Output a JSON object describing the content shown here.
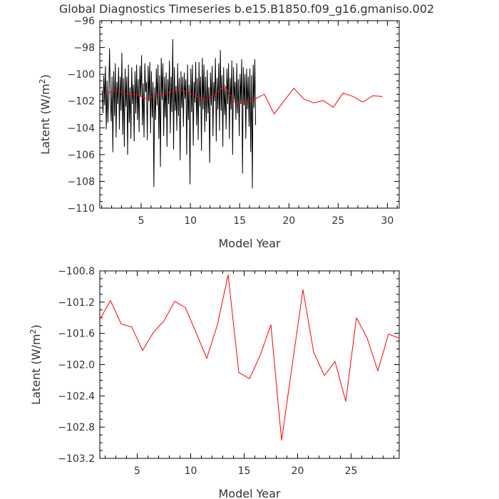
{
  "title": "Global Diagnostics Timeseries b.e15.B1850.f09_g16.gmaniso.002",
  "chart_data": [
    {
      "type": "line",
      "xlabel": "Model Year",
      "ylabel": "Latent (W/m",
      "ylabel_sup": "2",
      "ylabel_close": ")",
      "xlim": [
        0.8,
        31.2
      ],
      "ylim": [
        -110,
        -96
      ],
      "xticks": [
        5,
        10,
        15,
        20,
        25,
        30
      ],
      "xtick_labels": [
        "5",
        "10",
        "15",
        "20",
        "25",
        "30"
      ],
      "yticks": [
        -110,
        -108,
        -106,
        -104,
        -102,
        -100,
        -98,
        -96
      ],
      "ytick_labels": [
        "−110",
        "−108",
        "−106",
        "−104",
        "−102",
        "−100",
        "−98",
        "−96"
      ],
      "series": [
        {
          "color": "#000000",
          "x_start": 1.04,
          "x_step": 0.0833333,
          "values": [
            -101.2,
            -102.9,
            -100.1,
            -102.3,
            -99.4,
            -104.1,
            -100.5,
            -103.6,
            -101.4,
            -98.1,
            -102.0,
            -103.5,
            -100.2,
            -105.8,
            -99.8,
            -103.1,
            -99.2,
            -104.7,
            -100.6,
            -102.2,
            -99.5,
            -104.1,
            -100.2,
            -102.7,
            -98.4,
            -104.5,
            -100.3,
            -105.4,
            -99.6,
            -102.4,
            -100.2,
            -106.0,
            -99.3,
            -103.6,
            -101.0,
            -104.8,
            -99.5,
            -102.2,
            -100.8,
            -105.0,
            -99.8,
            -102.9,
            -99.3,
            -103.4,
            -100.4,
            -104.3,
            -99.4,
            -101.6,
            -98.6,
            -103.8,
            -100.7,
            -104.7,
            -99.2,
            -101.3,
            -100.6,
            -104.9,
            -99.4,
            -102.0,
            -99.1,
            -104.4,
            -99.8,
            -103.2,
            -100.6,
            -108.4,
            -101.0,
            -103.4,
            -99.6,
            -102.3,
            -99.3,
            -104.8,
            -100.1,
            -106.9,
            -98.8,
            -101.9,
            -99.2,
            -104.6,
            -100.2,
            -103.2,
            -99.9,
            -105.4,
            -100.4,
            -102.2,
            -99.0,
            -104.4,
            -100.2,
            -102.8,
            -97.4,
            -105.6,
            -99.5,
            -102.7,
            -100.9,
            -104.2,
            -99.2,
            -103.1,
            -100.3,
            -106.4,
            -99.8,
            -102.5,
            -100.2,
            -103.9,
            -99.9,
            -101.8,
            -100.4,
            -106.0,
            -99.3,
            -103.4,
            -100.8,
            -108.2,
            -99.6,
            -102.8,
            -99.3,
            -105.3,
            -100.6,
            -102.1,
            -99.1,
            -103.8,
            -100.3,
            -104.9,
            -99.1,
            -102.4,
            -100.2,
            -105.7,
            -98.8,
            -102.6,
            -99.3,
            -104.3,
            -100.2,
            -103.5,
            -99.7,
            -102.9,
            -101.0,
            -106.6,
            -99.9,
            -102.3,
            -99.4,
            -104.6,
            -100.6,
            -102.0,
            -98.8,
            -105.0,
            -100.3,
            -102.6,
            -99.2,
            -104.2,
            -98.2,
            -102.7,
            -100.1,
            -105.4,
            -99.5,
            -103.0,
            -101.0,
            -104.1,
            -99.6,
            -102.2,
            -99.2,
            -104.8,
            -100.3,
            -102.6,
            -99.0,
            -106.0,
            -99.5,
            -101.9,
            -100.6,
            -103.4,
            -99.2,
            -102.9,
            -100.4,
            -104.6,
            -100.0,
            -102.2,
            -98.9,
            -107.4,
            -99.5,
            -102.3,
            -100.0,
            -104.8,
            -99.6,
            -102.6,
            -100.2,
            -103.9,
            -99.6,
            -105.8,
            -100.1,
            -108.5,
            -99.3,
            -102.5,
            -98.9,
            -103.8
          ]
        },
        {
          "color": "#ff0000",
          "x": [
            1.5,
            2.5,
            3.5,
            4.5,
            5.5,
            6.5,
            7.5,
            8.5,
            9.5,
            10.5,
            11.5,
            12.5,
            13.5,
            14.5,
            15.5,
            16.5,
            17.5,
            18.5,
            19.5,
            20.5,
            21.5,
            22.5,
            23.5,
            24.5,
            25.5,
            26.5,
            27.5,
            28.5,
            29.5
          ],
          "values": [
            -101.42,
            -101.18,
            -101.48,
            -101.52,
            -101.82,
            -101.59,
            -101.44,
            -101.19,
            -101.27,
            -101.59,
            -101.92,
            -101.49,
            -100.85,
            -102.1,
            -102.18,
            -101.88,
            -101.49,
            -102.97,
            -102.0,
            -101.04,
            -101.84,
            -102.14,
            -101.96,
            -102.47,
            -101.4,
            -101.66,
            -102.08,
            -101.61,
            -101.66
          ]
        }
      ]
    },
    {
      "type": "line",
      "xlabel": "Model Year",
      "ylabel": "Latent (W/m",
      "ylabel_sup": "2",
      "ylabel_close": ")",
      "xlim": [
        1.5,
        29.5
      ],
      "ylim": [
        -103.2,
        -100.8
      ],
      "xticks": [
        5,
        10,
        15,
        20,
        25
      ],
      "xtick_labels": [
        "5",
        "10",
        "15",
        "20",
        "25"
      ],
      "yticks": [
        -103.2,
        -102.8,
        -102.4,
        -102.0,
        -101.6,
        -101.2,
        -100.8
      ],
      "ytick_labels": [
        "−103.2",
        "−102.8",
        "−102.4",
        "−102.0",
        "−101.6",
        "−101.2",
        "−100.8"
      ],
      "series": [
        {
          "color": "#ff0000",
          "x": [
            1.5,
            2.5,
            3.5,
            4.5,
            5.5,
            6.5,
            7.5,
            8.5,
            9.5,
            10.5,
            11.5,
            12.5,
            13.5,
            14.5,
            15.5,
            16.5,
            17.5,
            18.5,
            19.5,
            20.5,
            21.5,
            22.5,
            23.5,
            24.5,
            25.5,
            26.5,
            27.5,
            28.5,
            29.5
          ],
          "values": [
            -101.42,
            -101.18,
            -101.48,
            -101.52,
            -101.82,
            -101.59,
            -101.44,
            -101.19,
            -101.27,
            -101.59,
            -101.92,
            -101.49,
            -100.85,
            -102.1,
            -102.18,
            -101.88,
            -101.49,
            -102.97,
            -102.0,
            -101.04,
            -101.84,
            -102.14,
            -101.96,
            -102.47,
            -101.4,
            -101.66,
            -102.08,
            -101.61,
            -101.66
          ]
        }
      ]
    }
  ]
}
